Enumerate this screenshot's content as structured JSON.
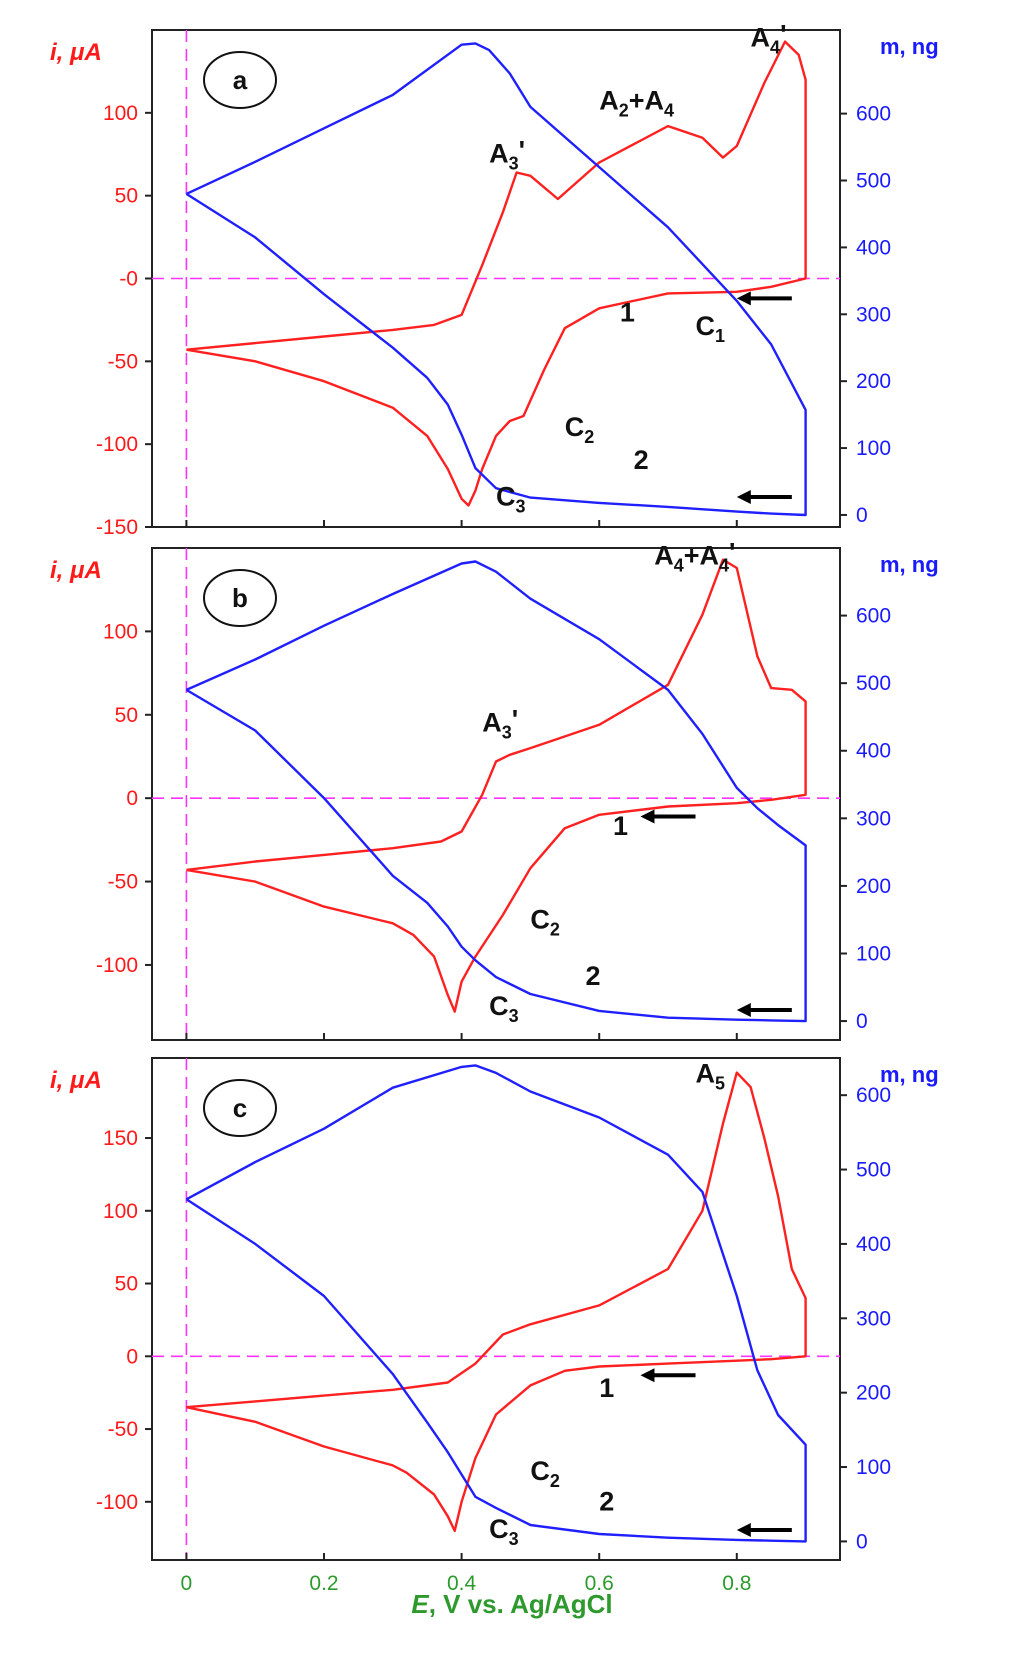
{
  "figure": {
    "xlabel_var": "E",
    "xlabel_rest": ", V vs. Ag/AgCl"
  },
  "chart_data": [
    {
      "type": "line",
      "panel_label": "a",
      "x_ticks": [
        "0",
        "0.2",
        "0.4",
        "0.6",
        "0.8"
      ],
      "xlim": [
        -0.05,
        0.95
      ],
      "left_axis": {
        "label": "i, μA",
        "ticks": [
          "100",
          "50",
          "-0",
          "-50",
          "-100",
          "-150"
        ],
        "tick_values": [
          100,
          50,
          0,
          -50,
          -100,
          -150
        ],
        "ylim": [
          -150,
          150
        ]
      },
      "right_axis": {
        "label": "m,  ng",
        "ticks": [
          "600",
          "500",
          "400",
          "300",
          "200",
          "100",
          "0"
        ],
        "tick_values": [
          600,
          500,
          400,
          300,
          200,
          100,
          0
        ],
        "ylim": [
          -18,
          725
        ]
      },
      "annotations": [
        {
          "text": "A4'",
          "x": 0.82,
          "y_left": 140
        },
        {
          "text": "A2+A4",
          "x": 0.6,
          "y_left": 102
        },
        {
          "text": "A3'",
          "x": 0.44,
          "y_left": 70
        },
        {
          "text": "1",
          "x": 0.63,
          "y_left": -26
        },
        {
          "text": "C1",
          "x": 0.74,
          "y_left": -34
        },
        {
          "text": "C2",
          "x": 0.55,
          "y_left": -95
        },
        {
          "text": "2",
          "x": 0.65,
          "y_left": -115
        },
        {
          "text": "C3",
          "x": 0.45,
          "y_left": -137
        }
      ],
      "series": [
        {
          "axis": "left",
          "color": "#ff2020",
          "x": [
            0,
            0.1,
            0.2,
            0.3,
            0.36,
            0.4,
            0.43,
            0.46,
            0.48,
            0.5,
            0.54,
            0.6,
            0.7,
            0.75,
            0.78,
            0.8,
            0.84,
            0.87,
            0.89,
            0.9,
            0.9,
            0.85,
            0.8,
            0.7,
            0.6,
            0.55,
            0.52,
            0.49,
            0.47,
            0.45,
            0.43,
            0.42,
            0.41,
            0.4,
            0.38,
            0.35,
            0.3,
            0.2,
            0.1,
            0
          ],
          "y": [
            -43,
            -39,
            -35,
            -31,
            -28,
            -22,
            8,
            40,
            64,
            62,
            48,
            70,
            92,
            85,
            73,
            80,
            118,
            143,
            135,
            120,
            0,
            -5,
            -8,
            -9,
            -18,
            -30,
            -55,
            -83,
            -86,
            -95,
            -115,
            -128,
            -137,
            -133,
            -115,
            -95,
            -78,
            -62,
            -50,
            -43
          ]
        },
        {
          "axis": "right",
          "color": "#2020ff",
          "x": [
            0,
            0.1,
            0.2,
            0.3,
            0.4,
            0.42,
            0.44,
            0.47,
            0.5,
            0.6,
            0.7,
            0.8,
            0.85,
            0.9,
            0.9,
            0.85,
            0.8,
            0.7,
            0.6,
            0.5,
            0.45,
            0.42,
            0.4,
            0.38,
            0.35,
            0.3,
            0.2,
            0.1,
            0
          ],
          "y": [
            480,
            528,
            578,
            628,
            703,
            705,
            695,
            660,
            610,
            520,
            430,
            320,
            255,
            157,
            0,
            2,
            5,
            12,
            18,
            26,
            40,
            70,
            120,
            165,
            205,
            250,
            330,
            415,
            480
          ]
        }
      ]
    },
    {
      "type": "line",
      "panel_label": "b",
      "x_ticks": [
        "0",
        "0.2",
        "0.4",
        "0.6",
        "0.8"
      ],
      "xlim": [
        -0.05,
        0.95
      ],
      "left_axis": {
        "label": "i, μA",
        "ticks": [
          "100",
          "50",
          "0",
          "-50",
          "-100"
        ],
        "tick_values": [
          100,
          50,
          0,
          -50,
          -100
        ],
        "ylim": [
          -145,
          150
        ]
      },
      "right_axis": {
        "label": "m,  ng",
        "ticks": [
          "600",
          "500",
          "400",
          "300",
          "200",
          "100",
          "0"
        ],
        "tick_values": [
          600,
          500,
          400,
          300,
          200,
          100,
          0
        ],
        "ylim": [
          -28,
          700
        ]
      },
      "annotations": [
        {
          "text": "A4+A4'",
          "x": 0.68,
          "y_left": 140
        },
        {
          "text": "A3'",
          "x": 0.43,
          "y_left": 40
        },
        {
          "text": "1",
          "x": 0.62,
          "y_left": -22
        },
        {
          "text": "C2",
          "x": 0.5,
          "y_left": -78
        },
        {
          "text": "2",
          "x": 0.58,
          "y_left": -112
        },
        {
          "text": "C3",
          "x": 0.44,
          "y_left": -130
        }
      ],
      "series": [
        {
          "axis": "left",
          "color": "#ff2020",
          "x": [
            0,
            0.1,
            0.2,
            0.3,
            0.37,
            0.4,
            0.43,
            0.45,
            0.47,
            0.5,
            0.6,
            0.7,
            0.75,
            0.78,
            0.8,
            0.83,
            0.85,
            0.88,
            0.9,
            0.9,
            0.85,
            0.8,
            0.7,
            0.6,
            0.55,
            0.5,
            0.46,
            0.42,
            0.4,
            0.39,
            0.38,
            0.36,
            0.33,
            0.3,
            0.2,
            0.1,
            0
          ],
          "y": [
            -43,
            -38,
            -34,
            -30,
            -26,
            -20,
            2,
            22,
            26,
            30,
            44,
            68,
            110,
            143,
            138,
            85,
            66,
            65,
            58,
            2,
            -1,
            -3,
            -5,
            -10,
            -18,
            -42,
            -70,
            -95,
            -110,
            -128,
            -118,
            -95,
            -82,
            -75,
            -65,
            -50,
            -43
          ]
        },
        {
          "axis": "right",
          "color": "#2020ff",
          "x": [
            0,
            0.1,
            0.2,
            0.3,
            0.4,
            0.42,
            0.45,
            0.5,
            0.6,
            0.7,
            0.75,
            0.8,
            0.83,
            0.86,
            0.9,
            0.9,
            0.85,
            0.8,
            0.7,
            0.6,
            0.5,
            0.45,
            0.42,
            0.4,
            0.38,
            0.35,
            0.3,
            0.2,
            0.1,
            0
          ],
          "y": [
            490,
            535,
            585,
            632,
            677,
            680,
            665,
            625,
            565,
            490,
            425,
            345,
            315,
            290,
            260,
            0,
            1,
            2,
            5,
            15,
            40,
            65,
            90,
            110,
            140,
            175,
            215,
            330,
            430,
            490
          ]
        }
      ]
    },
    {
      "type": "line",
      "panel_label": "c",
      "x_ticks": [
        "0",
        "0.2",
        "0.4",
        "0.6",
        "0.8"
      ],
      "xlim": [
        -0.05,
        0.95
      ],
      "left_axis": {
        "label": "i, μA",
        "ticks": [
          "150",
          "100",
          "50",
          "0",
          "-50",
          "-100"
        ],
        "tick_values": [
          150,
          100,
          50,
          0,
          -50,
          -100
        ],
        "ylim": [
          -140,
          205
        ]
      },
      "right_axis": {
        "label": "m,  ng",
        "ticks": [
          "600",
          "500",
          "400",
          "300",
          "200",
          "100",
          "0"
        ],
        "tick_values": [
          600,
          500,
          400,
          300,
          200,
          100,
          0
        ],
        "ylim": [
          -25,
          650
        ]
      },
      "annotations": [
        {
          "text": "A5",
          "x": 0.74,
          "y_left": 188
        },
        {
          "text": "1",
          "x": 0.6,
          "y_left": -28
        },
        {
          "text": "C2",
          "x": 0.5,
          "y_left": -85
        },
        {
          "text": "2",
          "x": 0.6,
          "y_left": -106
        },
        {
          "text": "C3",
          "x": 0.44,
          "y_left": -125
        }
      ],
      "series": [
        {
          "axis": "left",
          "color": "#ff2020",
          "x": [
            0,
            0.1,
            0.2,
            0.3,
            0.38,
            0.42,
            0.46,
            0.5,
            0.6,
            0.7,
            0.75,
            0.78,
            0.8,
            0.82,
            0.84,
            0.86,
            0.88,
            0.9,
            0.9,
            0.85,
            0.8,
            0.7,
            0.6,
            0.55,
            0.5,
            0.45,
            0.42,
            0.4,
            0.39,
            0.38,
            0.36,
            0.32,
            0.3,
            0.2,
            0.1,
            0
          ],
          "y": [
            -35,
            -31,
            -27,
            -23,
            -18,
            -5,
            15,
            22,
            35,
            60,
            100,
            160,
            195,
            185,
            150,
            110,
            60,
            40,
            0,
            -2,
            -3,
            -5,
            -7,
            -10,
            -20,
            -40,
            -70,
            -100,
            -120,
            -110,
            -95,
            -80,
            -75,
            -62,
            -45,
            -35
          ]
        },
        {
          "axis": "right",
          "color": "#2020ff",
          "x": [
            0,
            0.1,
            0.2,
            0.3,
            0.4,
            0.42,
            0.45,
            0.5,
            0.6,
            0.7,
            0.75,
            0.8,
            0.83,
            0.86,
            0.9,
            0.9,
            0.85,
            0.8,
            0.7,
            0.6,
            0.5,
            0.45,
            0.42,
            0.4,
            0.38,
            0.35,
            0.3,
            0.2,
            0.1,
            0
          ],
          "y": [
            460,
            510,
            555,
            610,
            638,
            640,
            630,
            605,
            570,
            520,
            470,
            330,
            230,
            170,
            130,
            0,
            1,
            2,
            5,
            10,
            22,
            45,
            60,
            90,
            120,
            160,
            225,
            330,
            400,
            460
          ]
        }
      ]
    }
  ]
}
